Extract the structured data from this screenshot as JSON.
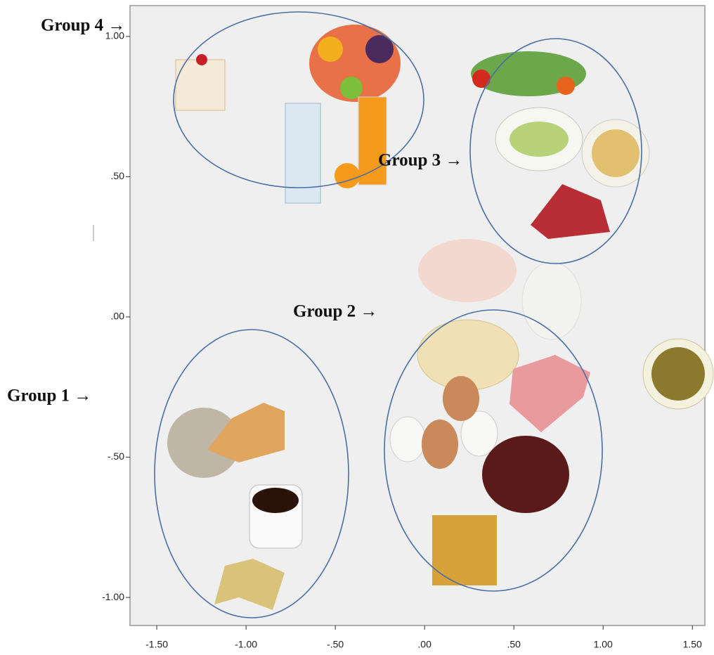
{
  "chart_data": {
    "type": "scatter",
    "annotations": [
      "Group 4 →",
      "Group 3 →",
      "Group 2 →",
      "Group 1 →"
    ],
    "xlim": [
      -1.65,
      1.57
    ],
    "ylim": [
      -1.1,
      1.11
    ],
    "xticks": [
      {
        "value": -1.5,
        "label": "-1.50"
      },
      {
        "value": -1,
        "label": "-1.00"
      },
      {
        "value": -0.5,
        "label": "-.50"
      },
      {
        "value": 0,
        "label": ".00"
      },
      {
        "value": 0.5,
        "label": ".50"
      },
      {
        "value": 1,
        "label": "1.00"
      },
      {
        "value": 1.5,
        "label": "1.50"
      }
    ],
    "yticks": [
      {
        "value": -1,
        "label": "-1.00"
      },
      {
        "value": -0.5,
        "label": "-.50"
      },
      {
        "value": 0,
        "label": ".00"
      },
      {
        "value": 0.5,
        "label": ".50"
      },
      {
        "value": 1,
        "label": "1.00"
      }
    ]
  }
}
